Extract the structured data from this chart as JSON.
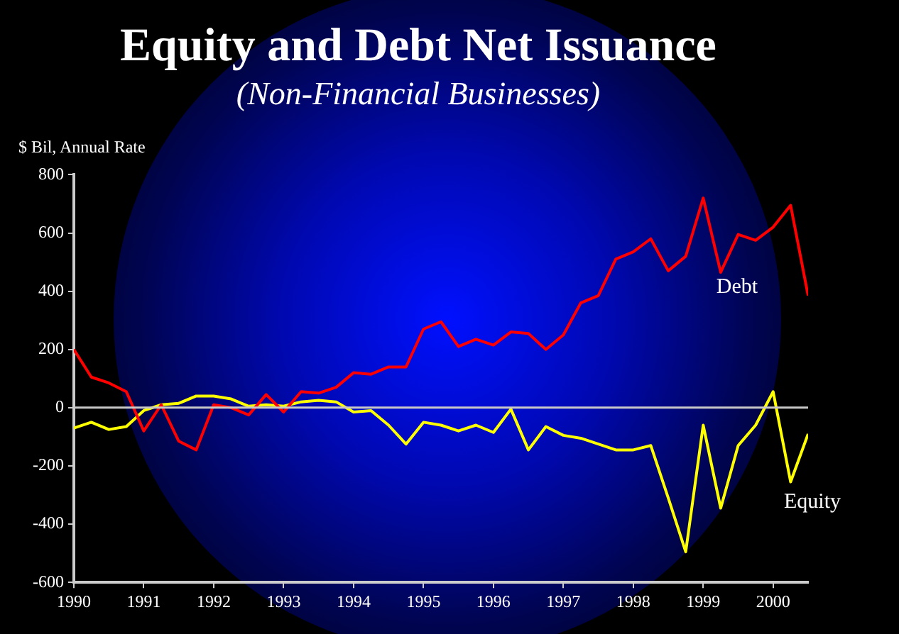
{
  "chart_data": {
    "type": "line",
    "title": "Equity and Debt Net Issuance",
    "subtitle": "(Non-Financial Businesses)",
    "ylabel": "$ Bil, Annual Rate",
    "x": [
      1990,
      1990.25,
      1990.5,
      1990.75,
      1991,
      1991.25,
      1991.5,
      1991.75,
      1992,
      1992.25,
      1992.5,
      1992.75,
      1993,
      1993.25,
      1993.5,
      1993.75,
      1994,
      1994.25,
      1994.5,
      1994.75,
      1995,
      1995.25,
      1995.5,
      1995.75,
      1996,
      1996.25,
      1996.5,
      1996.75,
      1997,
      1997.25,
      1997.5,
      1997.75,
      1998,
      1998.25,
      1998.5,
      1998.75,
      1999,
      1999.25,
      1999.5,
      1999.75,
      2000,
      2000.25,
      2000.5
    ],
    "series": [
      {
        "name": "Debt",
        "color": "#ff0000",
        "values": [
          200,
          105,
          85,
          55,
          -80,
          10,
          -115,
          -145,
          10,
          0,
          -25,
          45,
          -15,
          55,
          50,
          70,
          120,
          115,
          140,
          140,
          270,
          295,
          210,
          235,
          215,
          260,
          255,
          200,
          250,
          360,
          385,
          510,
          535,
          580,
          470,
          520,
          720,
          465,
          595,
          575,
          620,
          695,
          385
        ]
      },
      {
        "name": "Equity",
        "color": "#ffff00",
        "values": [
          -70,
          -50,
          -75,
          -65,
          -10,
          10,
          15,
          40,
          40,
          30,
          5,
          10,
          5,
          20,
          25,
          20,
          -15,
          -10,
          -60,
          -125,
          -50,
          -60,
          -80,
          -60,
          -85,
          -5,
          -145,
          -65,
          -95,
          -105,
          -125,
          -145,
          -145,
          -130,
          -310,
          -495,
          -60,
          -345,
          -130,
          -60,
          55,
          -255,
          -90
        ]
      }
    ],
    "xlim": [
      1990,
      2000.5
    ],
    "xticks": [
      1990,
      1991,
      1992,
      1993,
      1994,
      1995,
      1996,
      1997,
      1998,
      1999,
      2000
    ],
    "ylim": [
      -600,
      800
    ],
    "yticks": [
      -600,
      -400,
      -200,
      0,
      200,
      400,
      600,
      800
    ],
    "ref_lines": [
      {
        "axis": "y",
        "value": 0,
        "color": "#c8c8c8"
      }
    ],
    "grid": false,
    "legend": false,
    "marker": "none",
    "line_style": "solid"
  }
}
